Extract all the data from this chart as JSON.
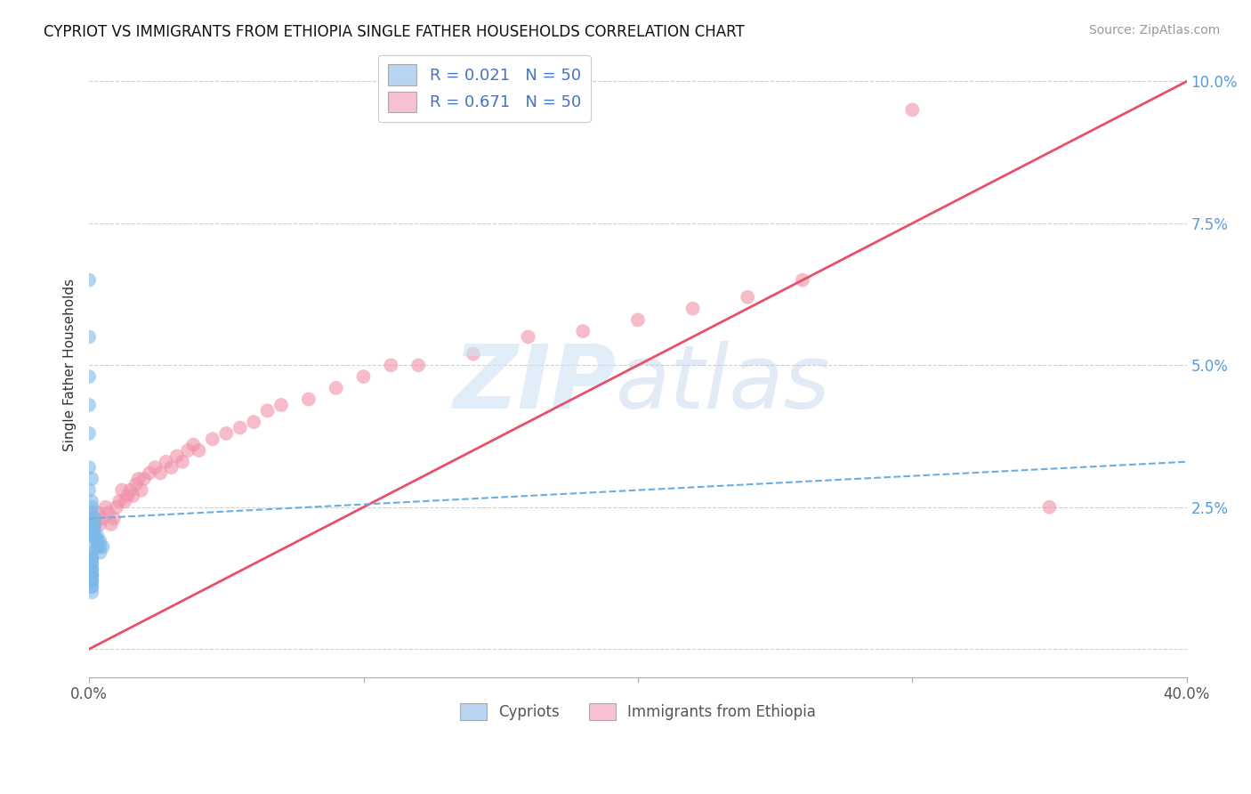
{
  "title": "CYPRIOT VS IMMIGRANTS FROM ETHIOPIA SINGLE FATHER HOUSEHOLDS CORRELATION CHART",
  "source": "Source: ZipAtlas.com",
  "ylabel": "Single Father Households",
  "xlim": [
    0.0,
    0.4
  ],
  "ylim": [
    -0.005,
    0.105
  ],
  "xticks": [
    0.0,
    0.1,
    0.2,
    0.3,
    0.4
  ],
  "xtick_labels": [
    "0.0%",
    "",
    "",
    "",
    "40.0%"
  ],
  "yticks": [
    0.025,
    0.05,
    0.075,
    0.1
  ],
  "ytick_labels": [
    "2.5%",
    "5.0%",
    "7.5%",
    "10.0%"
  ],
  "background_color": "#ffffff",
  "grid_color": "#d0d0d0",
  "blue_color": "#7db8e8",
  "pink_color": "#f090a8",
  "blue_line_color": "#6aaee0",
  "pink_line_color": "#e8506a",
  "blue_legend_color": "#b8d4f0",
  "pink_legend_color": "#f8c0d0",
  "blue_scatter_x": [
    0.0,
    0.0,
    0.0,
    0.0,
    0.0,
    0.0,
    0.001,
    0.0,
    0.001,
    0.001,
    0.001,
    0.001,
    0.002,
    0.001,
    0.001,
    0.002,
    0.001,
    0.002,
    0.001,
    0.002,
    0.002,
    0.003,
    0.002,
    0.003,
    0.003,
    0.004,
    0.003,
    0.004,
    0.005,
    0.004,
    0.001,
    0.001,
    0.001,
    0.001,
    0.001,
    0.001,
    0.001,
    0.001,
    0.001,
    0.001,
    0.001,
    0.001,
    0.001,
    0.001,
    0.001,
    0.001,
    0.001,
    0.001,
    0.001,
    0.001
  ],
  "blue_scatter_y": [
    0.065,
    0.055,
    0.048,
    0.043,
    0.038,
    0.032,
    0.03,
    0.028,
    0.026,
    0.025,
    0.024,
    0.023,
    0.023,
    0.022,
    0.022,
    0.022,
    0.021,
    0.021,
    0.021,
    0.02,
    0.02,
    0.02,
    0.019,
    0.019,
    0.019,
    0.019,
    0.018,
    0.018,
    0.018,
    0.017,
    0.017,
    0.017,
    0.016,
    0.016,
    0.016,
    0.015,
    0.015,
    0.014,
    0.014,
    0.014,
    0.013,
    0.013,
    0.013,
    0.013,
    0.012,
    0.012,
    0.012,
    0.011,
    0.011,
    0.01
  ],
  "pink_scatter_x": [
    0.001,
    0.002,
    0.003,
    0.004,
    0.005,
    0.006,
    0.007,
    0.008,
    0.009,
    0.01,
    0.011,
    0.012,
    0.013,
    0.014,
    0.015,
    0.016,
    0.017,
    0.018,
    0.019,
    0.02,
    0.022,
    0.024,
    0.026,
    0.028,
    0.03,
    0.032,
    0.034,
    0.036,
    0.038,
    0.04,
    0.045,
    0.05,
    0.055,
    0.06,
    0.065,
    0.07,
    0.08,
    0.09,
    0.1,
    0.11,
    0.12,
    0.14,
    0.16,
    0.18,
    0.2,
    0.22,
    0.24,
    0.26,
    0.3,
    0.35
  ],
  "pink_scatter_y": [
    0.02,
    0.022,
    0.024,
    0.022,
    0.023,
    0.025,
    0.024,
    0.022,
    0.023,
    0.025,
    0.026,
    0.028,
    0.026,
    0.027,
    0.028,
    0.027,
    0.029,
    0.03,
    0.028,
    0.03,
    0.031,
    0.032,
    0.031,
    0.033,
    0.032,
    0.034,
    0.033,
    0.035,
    0.036,
    0.035,
    0.037,
    0.038,
    0.039,
    0.04,
    0.042,
    0.043,
    0.044,
    0.046,
    0.048,
    0.05,
    0.05,
    0.052,
    0.055,
    0.056,
    0.058,
    0.06,
    0.062,
    0.065,
    0.095,
    0.025
  ],
  "pink_line_x0": 0.0,
  "pink_line_y0": 0.0,
  "pink_line_x1": 0.4,
  "pink_line_y1": 0.1,
  "blue_line_x0": 0.0,
  "blue_line_y0": 0.023,
  "blue_line_x1": 0.4,
  "blue_line_y1": 0.033
}
